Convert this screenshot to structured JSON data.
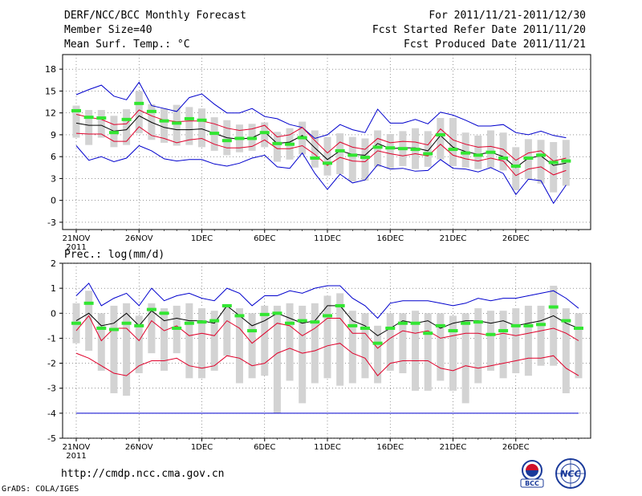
{
  "header": {
    "title": "DERF/NCC/BCC Monthly Forecast",
    "member_size": "Member Size=40",
    "period": "For 2011/11/21-2011/12/30",
    "fcst_started": "Fcst Started Refer Date 2011/11/20",
    "fcst_produced": "Fcst Produced Date 2011/11/21"
  },
  "footer": {
    "url": "http://cmdp.ncc.cma.gov.cn",
    "credit": "GrADS: COLA/IGES",
    "logo_bcc": "BCC",
    "logo_ncc": "NCC"
  },
  "colors": {
    "box": "#d3d3d3",
    "obs": "#32e632",
    "max": "#0000cd",
    "min": "#0000cd",
    "mean": "#000000",
    "p_hi": "#e0002a",
    "p_lo": "#e0002a"
  },
  "chart_data": [
    {
      "type": "line",
      "title": "Mean Surf. Temp.: °C",
      "ylim": [
        -4,
        20
      ],
      "yticks": [
        -3,
        0,
        3,
        6,
        9,
        12,
        15,
        18
      ],
      "xticks": [
        {
          "day": 0,
          "label": "21NOV",
          "label2": "2011"
        },
        {
          "day": 5,
          "label": "26NOV"
        },
        {
          "day": 10,
          "label": "1DEC"
        },
        {
          "day": 15,
          "label": "6DEC"
        },
        {
          "day": 20,
          "label": "11DEC"
        },
        {
          "day": 25,
          "label": "16DEC"
        },
        {
          "day": 30,
          "label": "21DEC"
        },
        {
          "day": 35,
          "label": "26DEC"
        }
      ],
      "series": [
        {
          "name": "max",
          "values": [
            14.5,
            15.2,
            15.8,
            14.3,
            13.8,
            16.2,
            13.0,
            12.6,
            12.2,
            14.1,
            14.6,
            13.2,
            12.0,
            12.0,
            12.6,
            11.5,
            11.2,
            10.4,
            10.0,
            8.5,
            9.0,
            10.4,
            9.7,
            9.3,
            12.5,
            10.6,
            10.6,
            11.1,
            10.5,
            12.1,
            11.7,
            11.0,
            10.2,
            10.2,
            10.4,
            9.3,
            9.0,
            9.5,
            8.9,
            8.6
          ]
        },
        {
          "name": "p_hi",
          "values": [
            11.8,
            11.4,
            11.1,
            10.4,
            10.5,
            12.4,
            11.6,
            11.0,
            10.8,
            10.9,
            10.9,
            10.5,
            9.9,
            9.6,
            9.8,
            10.3,
            8.7,
            9.0,
            10.0,
            8.2,
            6.5,
            8.0,
            7.3,
            7.0,
            8.5,
            7.9,
            8.1,
            8.0,
            7.6,
            9.8,
            8.3,
            7.7,
            7.3,
            7.4,
            7.0,
            5.5,
            6.5,
            6.8,
            5.4,
            5.8
          ]
        },
        {
          "name": "mean",
          "values": [
            10.6,
            10.3,
            10.3,
            9.5,
            9.7,
            11.6,
            10.7,
            10.0,
            9.7,
            9.7,
            9.8,
            9.2,
            8.6,
            8.4,
            8.6,
            9.4,
            7.8,
            8.0,
            8.9,
            7.2,
            5.6,
            6.8,
            6.3,
            6.2,
            7.8,
            7.1,
            7.2,
            7.2,
            6.8,
            8.9,
            7.3,
            6.7,
            6.3,
            6.6,
            6.0,
            4.5,
            5.8,
            6.1,
            4.8,
            5.1
          ]
        },
        {
          "name": "p_lo",
          "values": [
            9.2,
            9.1,
            9.1,
            8.1,
            8.1,
            10.1,
            8.9,
            8.5,
            7.9,
            8.3,
            8.5,
            7.7,
            7.2,
            7.2,
            7.4,
            8.3,
            7.1,
            7.1,
            7.5,
            6.3,
            4.8,
            5.9,
            5.4,
            5.3,
            6.8,
            6.4,
            6.1,
            6.4,
            6.1,
            7.7,
            6.2,
            5.7,
            5.4,
            5.8,
            5.4,
            3.4,
            4.3,
            4.6,
            3.5,
            4.1
          ]
        },
        {
          "name": "min",
          "values": [
            7.5,
            5.5,
            6.0,
            5.3,
            5.8,
            7.5,
            6.8,
            5.7,
            5.4,
            5.6,
            5.6,
            5.0,
            4.7,
            5.1,
            5.8,
            6.2,
            4.6,
            4.4,
            6.5,
            3.7,
            1.5,
            3.6,
            2.4,
            2.8,
            4.9,
            4.3,
            4.4,
            4.0,
            4.1,
            5.6,
            4.4,
            4.3,
            3.9,
            4.5,
            3.7,
            0.8,
            2.9,
            2.7,
            -0.4,
            2.1
          ]
        },
        {
          "name": "obs",
          "values": [
            12.3,
            11.4,
            11.3,
            9.3,
            11.1,
            13.3,
            12.2,
            10.9,
            10.6,
            11.2,
            11.0,
            9.2,
            8.2,
            8.5,
            8.5,
            9.3,
            7.8,
            7.7,
            8.6,
            5.8,
            5.1,
            6.8,
            6.2,
            5.9,
            7.3,
            7.2,
            7.1,
            7.0,
            6.4,
            9.0,
            7.0,
            6.5,
            6.2,
            6.6,
            5.8,
            4.7,
            5.8,
            6.2,
            5.2,
            5.4
          ]
        },
        {
          "name": "box_hi",
          "values": [
            13.0,
            12.4,
            12.4,
            11.6,
            12.5,
            15.0,
            13.2,
            12.6,
            13.1,
            12.8,
            12.6,
            11.4,
            11.0,
            10.4,
            10.5,
            10.7,
            9.4,
            9.9,
            10.8,
            9.6,
            8.7,
            9.2,
            8.7,
            8.5,
            9.6,
            9.1,
            9.5,
            9.9,
            9.5,
            11.3,
            11.3,
            9.3,
            8.9,
            9.6,
            9.3,
            7.3,
            8.4,
            8.3,
            8.0,
            8.3
          ]
        },
        {
          "name": "box_lo",
          "values": [
            8.6,
            7.6,
            8.6,
            7.3,
            7.6,
            9.2,
            8.3,
            7.9,
            7.5,
            7.6,
            7.3,
            6.8,
            6.2,
            6.6,
            6.8,
            7.3,
            5.3,
            5.6,
            6.3,
            4.5,
            3.4,
            3.6,
            2.6,
            2.7,
            4.6,
            4.4,
            4.7,
            4.3,
            4.6,
            5.6,
            4.7,
            4.5,
            4.3,
            4.5,
            4.1,
            1.4,
            2.9,
            2.3,
            1.1,
            2.0
          ]
        }
      ]
    },
    {
      "type": "line",
      "title": "Prec.: log(mm/d)",
      "ylim": [
        -5,
        2
      ],
      "yticks": [
        -5,
        -4,
        -3,
        -2,
        -1,
        0,
        1,
        2
      ],
      "xticks": [
        {
          "day": 0,
          "label": "21NOV",
          "label2": "2011"
        },
        {
          "day": 5,
          "label": "26NOV"
        },
        {
          "day": 10,
          "label": "1DEC"
        },
        {
          "day": 15,
          "label": "6DEC"
        },
        {
          "day": 20,
          "label": "11DEC"
        },
        {
          "day": 25,
          "label": "16DEC"
        },
        {
          "day": 30,
          "label": "21DEC"
        },
        {
          "day": 35,
          "label": "26DEC"
        }
      ],
      "series": [
        {
          "name": "max",
          "values": [
            0.7,
            1.2,
            0.3,
            0.6,
            0.8,
            0.3,
            1.0,
            0.5,
            0.7,
            0.8,
            0.6,
            0.5,
            1.0,
            0.8,
            0.3,
            0.7,
            0.7,
            0.9,
            0.8,
            1.0,
            1.1,
            1.1,
            0.6,
            0.3,
            -0.2,
            0.4,
            0.5,
            0.5,
            0.5,
            0.4,
            0.3,
            0.4,
            0.6,
            0.5,
            0.6,
            0.6,
            0.7,
            0.8,
            0.9,
            0.6,
            0.2
          ]
        },
        {
          "name": "mean",
          "values": [
            -0.3,
            0.0,
            -0.5,
            -0.4,
            0.0,
            -0.5,
            0.1,
            -0.3,
            -0.2,
            -0.3,
            -0.3,
            -0.4,
            0.3,
            -0.1,
            -0.5,
            -0.3,
            0.0,
            -0.2,
            -0.4,
            -0.3,
            0.3,
            0.3,
            -0.3,
            -0.5,
            -0.9,
            -0.6,
            -0.3,
            -0.4,
            -0.3,
            -0.6,
            -0.4,
            -0.3,
            -0.3,
            -0.4,
            -0.3,
            -0.5,
            -0.4,
            -0.3,
            -0.1,
            -0.4,
            -0.6
          ]
        },
        {
          "name": "p_hi",
          "values": [
            -0.7,
            -0.1,
            -1.1,
            -0.6,
            -0.6,
            -1.1,
            -0.3,
            -0.7,
            -0.5,
            -0.9,
            -0.8,
            -0.9,
            -0.3,
            -0.6,
            -1.2,
            -0.8,
            -0.4,
            -0.5,
            -0.9,
            -0.6,
            -0.2,
            -0.2,
            -0.8,
            -0.8,
            -1.4,
            -1.0,
            -0.7,
            -0.8,
            -0.7,
            -1.0,
            -0.9,
            -0.8,
            -0.8,
            -0.9,
            -0.8,
            -0.9,
            -0.8,
            -0.7,
            -0.6,
            -0.8,
            -1.1
          ]
        },
        {
          "name": "p_lo",
          "values": [
            -1.6,
            -1.8,
            -2.1,
            -2.4,
            -2.5,
            -2.1,
            -1.9,
            -1.9,
            -1.8,
            -2.1,
            -2.2,
            -2.1,
            -1.7,
            -1.8,
            -2.1,
            -2.0,
            -1.6,
            -1.4,
            -1.6,
            -1.5,
            -1.3,
            -1.2,
            -1.6,
            -1.8,
            -2.5,
            -2.0,
            -1.9,
            -1.9,
            -1.9,
            -2.2,
            -2.3,
            -2.1,
            -2.2,
            -2.1,
            -2.0,
            -1.9,
            -1.8,
            -1.8,
            -1.7,
            -2.2,
            -2.5
          ]
        },
        {
          "name": "min",
          "values": [
            -4,
            -4,
            -4,
            -4,
            -4,
            -4,
            -4,
            -4,
            -4,
            -4,
            -4,
            -4,
            -4,
            -4,
            -4,
            -4,
            -4,
            -4,
            -4,
            -4,
            -4,
            -4,
            -4,
            -4,
            -4,
            -4,
            -4,
            -4,
            -4,
            -4,
            -4,
            -4,
            -4,
            -4,
            -4,
            -4,
            -4,
            -4,
            -4,
            -4,
            -4
          ]
        },
        {
          "name": "obs",
          "values": [
            -0.4,
            0.4,
            -0.6,
            -0.65,
            -0.4,
            -0.5,
            0.15,
            0.0,
            -0.6,
            -0.4,
            -0.35,
            -0.3,
            0.3,
            -0.1,
            -0.7,
            -0.05,
            0.0,
            -0.4,
            -0.3,
            -0.35,
            -0.1,
            0.3,
            -0.5,
            -0.6,
            -1.2,
            -0.6,
            -0.4,
            -0.4,
            -0.8,
            -0.5,
            -0.7,
            -0.4,
            -0.35,
            -0.85,
            -0.7,
            -0.5,
            -0.5,
            -0.45,
            0.25,
            -0.3,
            -0.6
          ]
        },
        {
          "name": "box_hi",
          "values": [
            0.4,
            0.9,
            0.0,
            0.3,
            0.4,
            -0.1,
            0.4,
            0.2,
            0.3,
            0.4,
            0.2,
            0.1,
            0.3,
            0.2,
            0.0,
            0.3,
            0.3,
            0.4,
            0.3,
            0.4,
            0.7,
            0.8,
            0.1,
            0.0,
            -0.5,
            0.0,
            0.0,
            0.1,
            0.0,
            0.0,
            -0.1,
            0.0,
            0.2,
            0.1,
            0.1,
            0.2,
            0.3,
            0.3,
            1.1,
            0.2,
            0.0
          ]
        },
        {
          "name": "box_lo",
          "values": [
            -1.2,
            -1.5,
            -2.3,
            -3.2,
            -3.3,
            -2.4,
            -1.6,
            -2.3,
            -1.6,
            -2.6,
            -2.6,
            -2.3,
            -1.7,
            -2.8,
            -2.6,
            -2.5,
            -4,
            -2.7,
            -3.6,
            -2.8,
            -2.6,
            -2.9,
            -2.8,
            -2.6,
            -2.8,
            -2.3,
            -2.4,
            -3.1,
            -3.1,
            -2.7,
            -3.1,
            -3.6,
            -2.8,
            -2.3,
            -2.6,
            -2.4,
            -2.5,
            -2.1,
            -2.1,
            -3.2,
            -2.6
          ]
        }
      ]
    }
  ]
}
